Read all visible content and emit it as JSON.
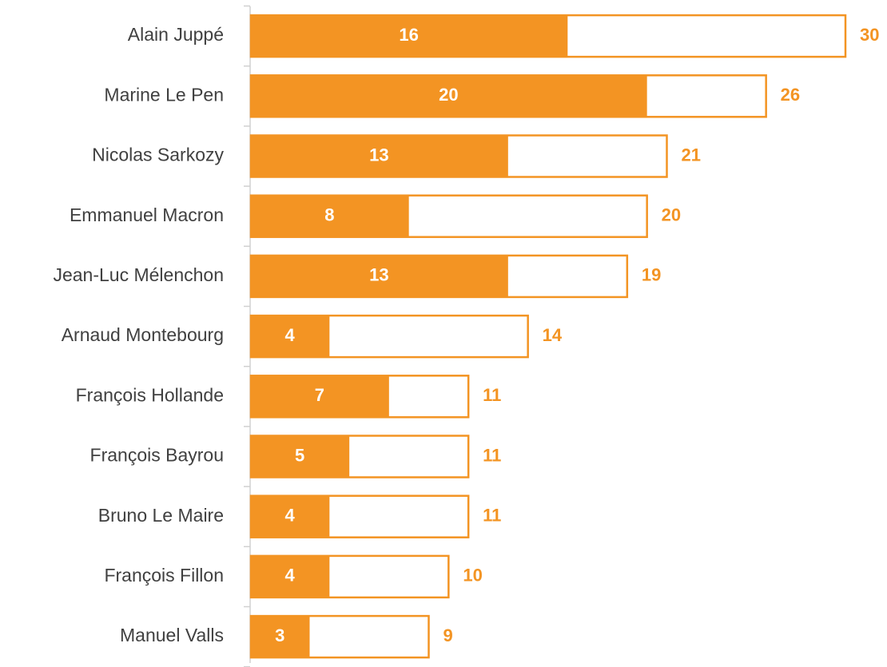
{
  "chart_data": {
    "type": "bar",
    "orientation": "horizontal",
    "categories": [
      "Alain Juppé",
      "Marine Le Pen",
      "Nicolas Sarkozy",
      "Emmanuel Macron",
      "Jean-Luc Mélenchon",
      "Arnaud Montebourg",
      "François Hollande",
      "François Bayrou",
      "Bruno Le Maire",
      "François Fillon",
      "Manuel Valls"
    ],
    "series": [
      {
        "color": "#f39423",
        "style": "outline",
        "values": [
          30,
          26,
          21,
          20,
          19,
          14,
          11,
          11,
          11,
          10,
          9
        ]
      },
      {
        "color": "#f39423",
        "style": "filled",
        "values": [
          16,
          20,
          13,
          8,
          13,
          4,
          7,
          5,
          4,
          4,
          3
        ]
      }
    ]
  }
}
